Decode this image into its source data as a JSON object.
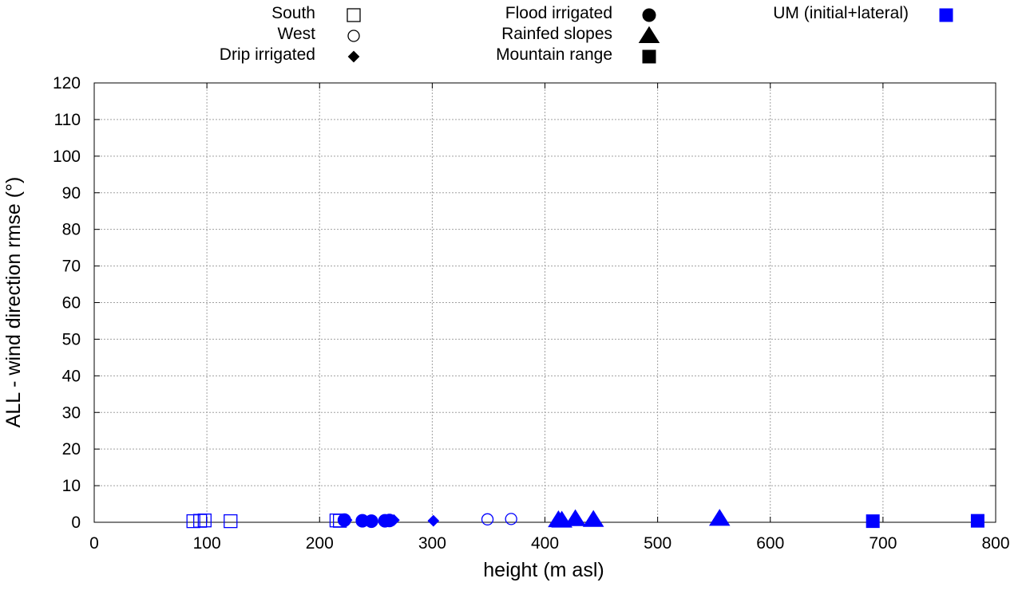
{
  "chart_data": {
    "type": "scatter",
    "xlabel": "height (m asl)",
    "ylabel": "ALL - wind direction rmse (°)",
    "xlim": [
      0,
      800
    ],
    "ylim": [
      0,
      120
    ],
    "xticks": [
      0,
      100,
      200,
      300,
      400,
      500,
      600,
      700,
      800
    ],
    "yticks": [
      0,
      10,
      20,
      30,
      40,
      50,
      60,
      70,
      80,
      90,
      100,
      110,
      120
    ],
    "grid": true,
    "legend": [
      {
        "label": "South",
        "marker": "square-open",
        "color": "#000000"
      },
      {
        "label": "West",
        "marker": "circle-open",
        "color": "#000000"
      },
      {
        "label": "Drip irrigated",
        "marker": "diamond-filled",
        "color": "#000000"
      },
      {
        "label": "Flood irrigated",
        "marker": "circle-filled",
        "color": "#000000"
      },
      {
        "label": "Rainfed slopes",
        "marker": "triangle-filled",
        "color": "#000000"
      },
      {
        "label": "Mountain range",
        "marker": "square-filled",
        "color": "#000000"
      },
      {
        "label": "UM (initial+lateral)",
        "marker": "square-filled",
        "color": "#0000ff"
      }
    ],
    "series_color": "#0000ff",
    "series": [
      {
        "name": "South",
        "marker": "square-open",
        "points": [
          [
            88,
            0.3
          ],
          [
            94,
            0.4
          ],
          [
            98,
            0.5
          ],
          [
            121,
            0.3
          ],
          [
            215,
            0.5
          ],
          [
            218,
            0.4
          ]
        ]
      },
      {
        "name": "West",
        "marker": "circle-open",
        "points": [
          [
            349,
            0.8
          ],
          [
            370,
            0.9
          ]
        ]
      },
      {
        "name": "Drip irrigated",
        "marker": "diamond-filled",
        "points": [
          [
            224,
            0.6
          ],
          [
            260,
            0.4
          ],
          [
            262,
            0.5
          ],
          [
            266,
            0.6
          ],
          [
            301,
            0.4
          ]
        ]
      },
      {
        "name": "Flood irrigated",
        "marker": "circle-filled",
        "points": [
          [
            222,
            0.6
          ],
          [
            238,
            0.4
          ],
          [
            246,
            0.3
          ],
          [
            258,
            0.4
          ],
          [
            262,
            0.5
          ]
        ]
      },
      {
        "name": "Rainfed slopes",
        "marker": "triangle-filled",
        "points": [
          [
            412,
            0.6
          ],
          [
            415,
            0.5
          ],
          [
            427,
            0.9
          ],
          [
            443,
            0.7
          ],
          [
            555,
            1.0
          ]
        ]
      },
      {
        "name": "Mountain range",
        "marker": "square-filled",
        "points": [
          [
            691,
            0.3
          ],
          [
            784,
            0.4
          ]
        ]
      }
    ]
  }
}
